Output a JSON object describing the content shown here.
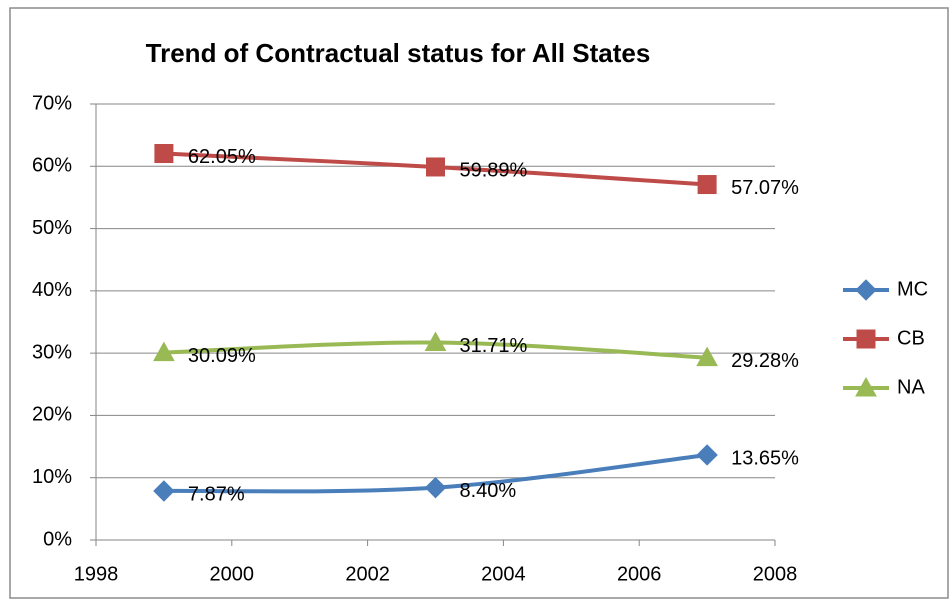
{
  "chart_data": {
    "type": "line",
    "title": "Trend of Contractual  status for All States",
    "x": [
      1999,
      2003,
      2007
    ],
    "series": [
      {
        "name": "MC",
        "color": "#4a7ebb",
        "marker": "diamond",
        "values": [
          7.87,
          8.4,
          13.65
        ],
        "value_labels": [
          "7.87%",
          "8.40%",
          "13.65%"
        ]
      },
      {
        "name": "CB",
        "color": "#be4b48",
        "marker": "square",
        "values": [
          62.05,
          59.89,
          57.07
        ],
        "value_labels": [
          "62.05%",
          "59.89%",
          "57.07%"
        ]
      },
      {
        "name": "NA",
        "color": "#98b954",
        "marker": "triangle",
        "values": [
          30.09,
          31.71,
          29.28
        ],
        "value_labels": [
          "30.09%",
          "31.71%",
          "29.28%"
        ]
      }
    ],
    "xlim": [
      1998,
      2008
    ],
    "xticks": [
      1998,
      2000,
      2002,
      2004,
      2006,
      2008
    ],
    "ylim": [
      0,
      70
    ],
    "yticks": [
      {
        "value": 0,
        "label": "0%"
      },
      {
        "value": 10,
        "label": "10%"
      },
      {
        "value": 20,
        "label": "20%"
      },
      {
        "value": 30,
        "label": "30%"
      },
      {
        "value": 40,
        "label": "40%"
      },
      {
        "value": 50,
        "label": "50%"
      },
      {
        "value": 60,
        "label": "60%"
      },
      {
        "value": 70,
        "label": "70%"
      }
    ],
    "grid": true,
    "smooth": true,
    "legend": "right"
  }
}
